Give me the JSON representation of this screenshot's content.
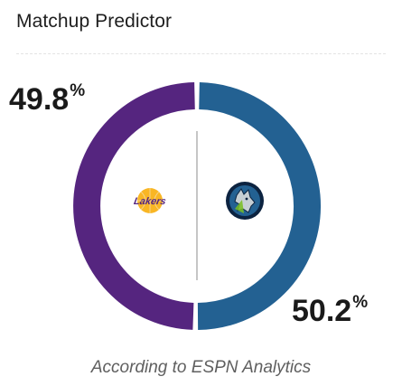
{
  "widget": {
    "title": "Matchup Predictor",
    "footer": "According to ESPN Analytics"
  },
  "away": {
    "team_logo": "lakers-logo",
    "logo_text": "Lakers",
    "win_pct": "49.8",
    "win_fraction": 0.498,
    "color": "#55257f",
    "logo_primary": "#55257f",
    "logo_secondary": "#f9b624"
  },
  "home": {
    "team_logo": "timberwolves-logo",
    "win_pct": "50.2",
    "win_fraction": 0.502,
    "color": "#236192",
    "logo_primary": "#0c2340",
    "logo_secondary": "#236192"
  },
  "percent_sign": "%"
}
